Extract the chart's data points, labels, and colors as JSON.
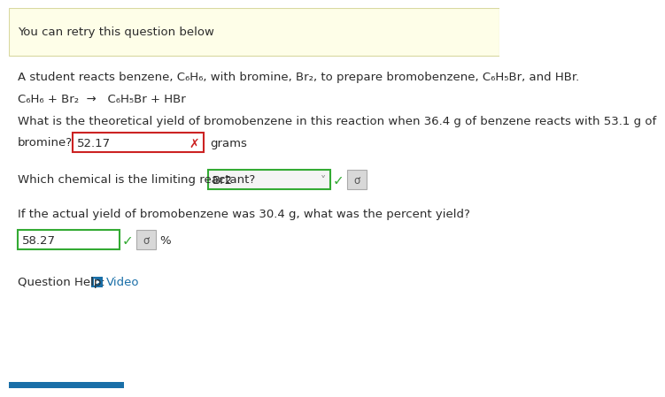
{
  "bg_color": "#ffffff",
  "banner_bg": "#fefee8",
  "banner_text": "You can retry this question below",
  "banner_border": "#d8d8a0",
  "line1": "A student reacts benzene, C₆H₆, with bromine, Br₂, to prepare bromobenzene, C₆H₅Br, and HBr.",
  "line2": "C₆H₆ + Br₂  →   C₆H₅Br + HBr",
  "line3a": "What is the theoretical yield of bromobenzene in this reaction when 36.4 g of benzene reacts with 53.1 g of",
  "line3b": "bromine?",
  "answer1": "52.17",
  "answer1_unit": "grams",
  "line4": "Which chemical is the limiting reactant?",
  "answer2": "Br2",
  "line5": "If the actual yield of bromobenzene was 30.4 g, what was the percent yield?",
  "answer3": "58.27",
  "answer3_unit": "%",
  "help_text": "Question Help:",
  "video_text": "Video",
  "text_color": "#2b2b2b",
  "link_color": "#1a6fa8",
  "red_color": "#cc2222",
  "green_color": "#33aa33",
  "gray_color": "#cccccc",
  "darkgray_color": "#888888"
}
